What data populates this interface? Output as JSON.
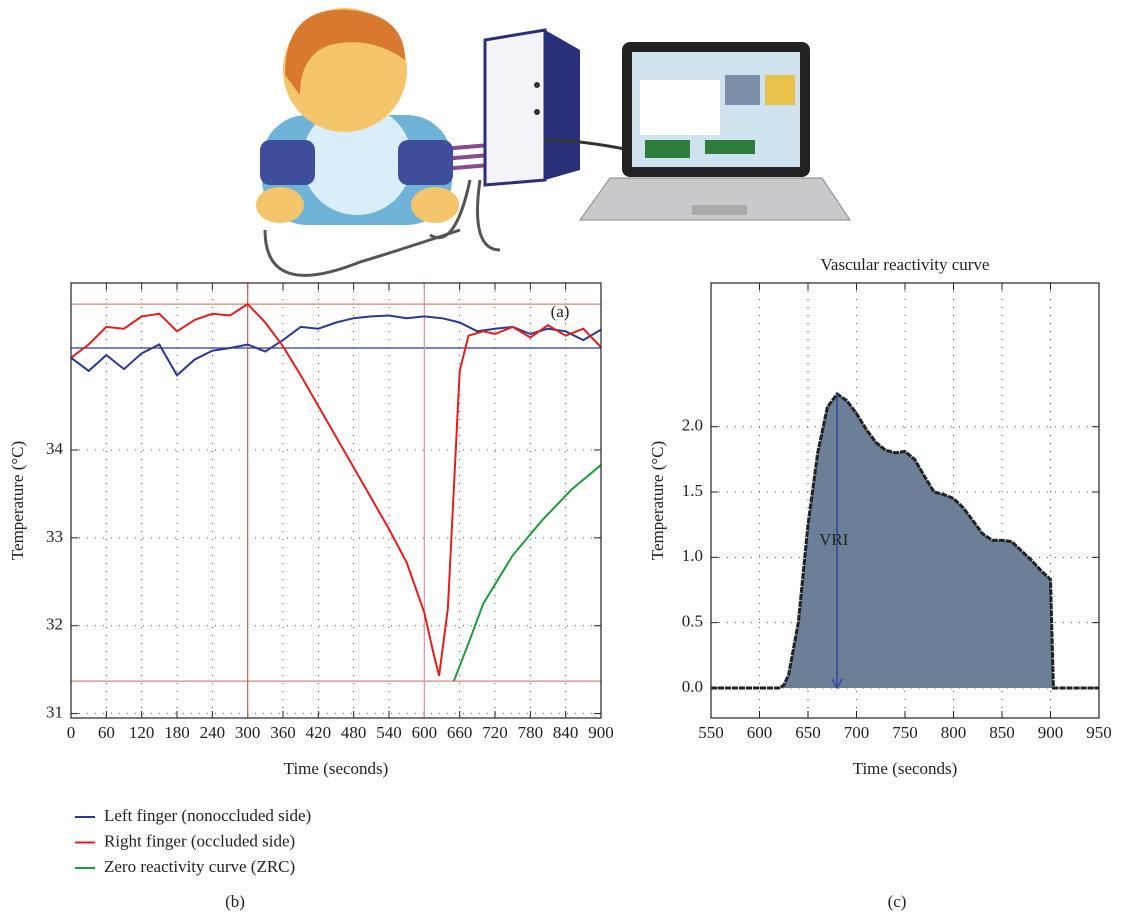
{
  "panel_labels": [
    "(a)",
    "(b)",
    "(c)"
  ],
  "chart_data": [
    {
      "type": "line",
      "x_label": "Time (seconds)",
      "y_label": "Temperature (°C)",
      "xlim": [
        0,
        900
      ],
      "ylim": [
        30.95,
        35.9
      ],
      "xticks": [
        0,
        60,
        120,
        180,
        240,
        300,
        360,
        420,
        480,
        540,
        600,
        660,
        720,
        780,
        840,
        900
      ],
      "yticks": [
        31,
        32,
        33,
        34
      ],
      "grid": true,
      "legend": "below",
      "hlines": [
        {
          "y": 35.66,
          "color": "#c98a78"
        },
        {
          "y": 35.16,
          "color": "#2c3990"
        },
        {
          "y": 31.37,
          "color": "#c98a78"
        }
      ],
      "vlines": [
        {
          "x": 300,
          "color": "#b36b5a"
        },
        {
          "x": 600,
          "color": "#d49aa0"
        }
      ],
      "series": [
        {
          "name": "Left finger (nonoccluded side)",
          "color": "#2c3990",
          "x": [
            0,
            30,
            60,
            90,
            120,
            150,
            180,
            210,
            240,
            270,
            300,
            330,
            360,
            390,
            420,
            450,
            480,
            510,
            540,
            570,
            600,
            630,
            660,
            690,
            720,
            750,
            780,
            810,
            840,
            870,
            900
          ],
          "values": [
            35.05,
            34.9,
            35.08,
            34.92,
            35.1,
            35.2,
            34.85,
            35.03,
            35.13,
            35.16,
            35.2,
            35.12,
            35.25,
            35.4,
            35.38,
            35.45,
            35.5,
            35.52,
            35.53,
            35.5,
            35.52,
            35.5,
            35.45,
            35.35,
            35.38,
            35.4,
            35.32,
            35.38,
            35.35,
            35.25,
            35.37
          ]
        },
        {
          "name": "Right finger (occluded side)",
          "color": "#e0201f",
          "x": [
            0,
            30,
            60,
            90,
            120,
            150,
            180,
            210,
            240,
            270,
            300,
            330,
            360,
            390,
            420,
            450,
            480,
            510,
            540,
            570,
            600,
            615,
            625,
            640,
            660,
            675,
            700,
            720,
            750,
            780,
            810,
            840,
            870,
            900
          ],
          "values": [
            35.05,
            35.2,
            35.4,
            35.38,
            35.52,
            35.55,
            35.35,
            35.48,
            35.55,
            35.53,
            35.66,
            35.45,
            35.18,
            34.85,
            34.5,
            34.15,
            33.8,
            33.45,
            33.1,
            32.72,
            32.15,
            31.7,
            31.43,
            32.2,
            34.9,
            35.3,
            35.35,
            35.32,
            35.4,
            35.28,
            35.42,
            35.3,
            35.38,
            35.17
          ]
        },
        {
          "name": "Zero reactivity curve (ZRC)",
          "color": "#1f9a3c",
          "x": [
            650,
            675,
            700,
            750,
            800,
            850,
            900
          ],
          "values": [
            31.37,
            31.8,
            32.25,
            32.8,
            33.2,
            33.55,
            33.83
          ]
        }
      ]
    },
    {
      "type": "area",
      "title": "Vascular reactivity curve",
      "x_label": "Time (seconds)",
      "y_label": "Temperature (°C)",
      "xlim": [
        550,
        950
      ],
      "ylim": [
        -0.23,
        3.1
      ],
      "xticks": [
        550,
        600,
        650,
        700,
        750,
        800,
        850,
        900,
        950
      ],
      "yticks": [
        {
          "value": 0,
          "label": "0.0"
        },
        0.5,
        {
          "value": 1,
          "label": "1.0"
        },
        1.5,
        {
          "value": 2,
          "label": "2.0"
        }
      ],
      "grid": true,
      "color": "#6b7f96",
      "x": [
        550,
        620,
        625,
        630,
        640,
        650,
        660,
        670,
        680,
        690,
        700,
        710,
        720,
        730,
        740,
        750,
        760,
        770,
        780,
        790,
        800,
        810,
        820,
        830,
        840,
        850,
        860,
        870,
        880,
        890,
        900,
        903,
        950
      ],
      "values": [
        0,
        0,
        0.02,
        0.1,
        0.5,
        1.25,
        1.8,
        2.15,
        2.25,
        2.2,
        2.1,
        1.98,
        1.88,
        1.82,
        1.8,
        1.81,
        1.75,
        1.62,
        1.5,
        1.48,
        1.45,
        1.38,
        1.28,
        1.18,
        1.13,
        1.13,
        1.12,
        1.05,
        0.98,
        0.9,
        0.83,
        0,
        0
      ],
      "annotation": {
        "text": "VRI",
        "x": 680,
        "from": 2.25,
        "to": 0
      }
    }
  ]
}
